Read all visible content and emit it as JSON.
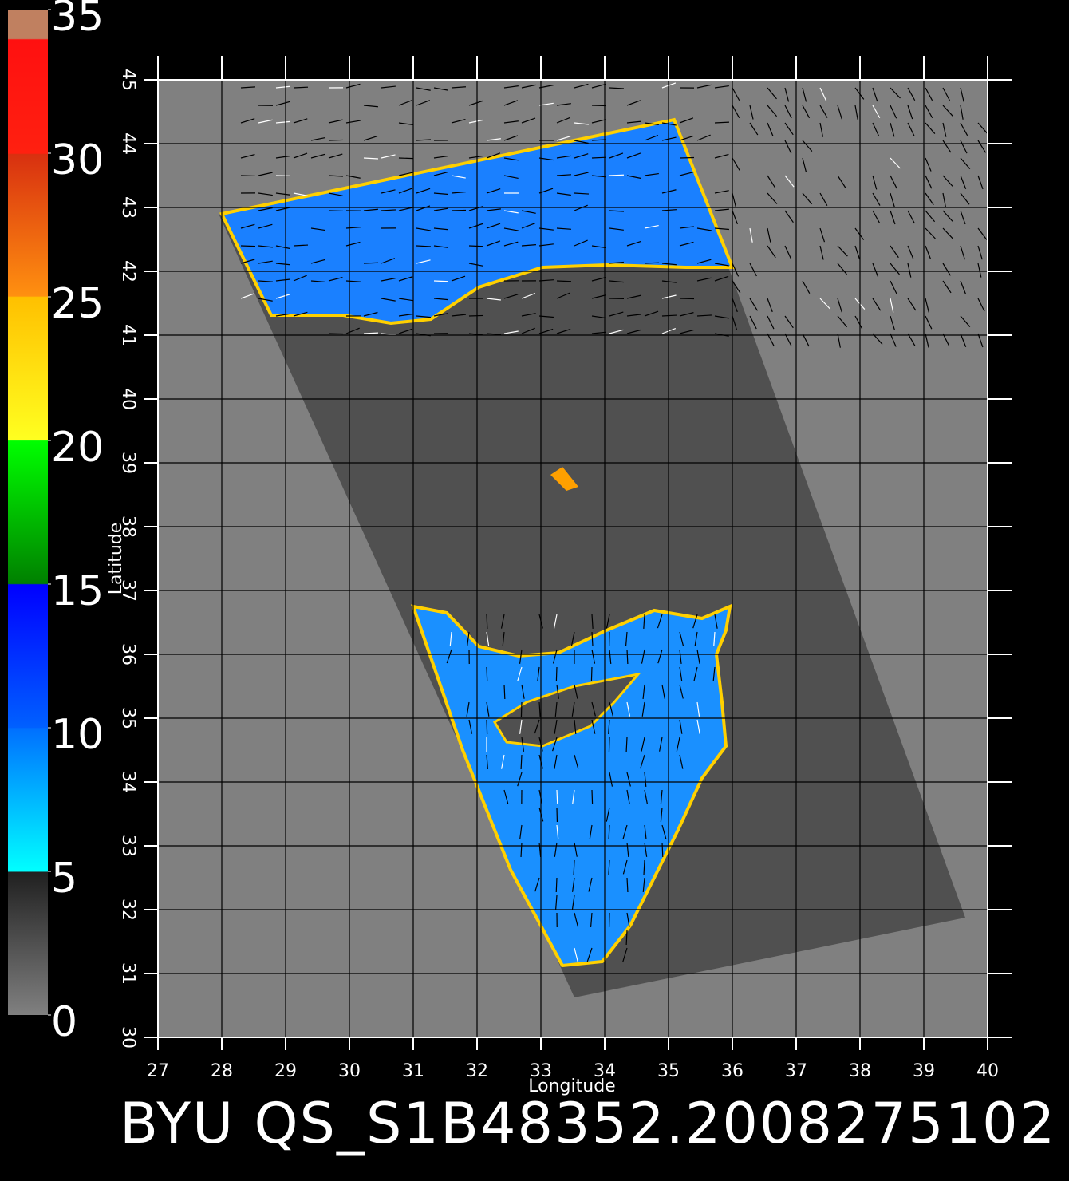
{
  "title": "BYU QS_S1B48352.2008275102",
  "x_axis": {
    "label": "Longitude",
    "lim": [
      27,
      40
    ],
    "ticks": [
      27,
      28,
      29,
      30,
      31,
      32,
      33,
      34,
      35,
      36,
      37,
      38,
      39,
      40
    ]
  },
  "y_axis": {
    "label": "Latitude",
    "lim": [
      30,
      45
    ],
    "ticks": [
      30,
      31,
      32,
      33,
      34,
      35,
      36,
      37,
      38,
      39,
      40,
      41,
      42,
      43,
      44,
      45
    ]
  },
  "colorbar": {
    "lim": [
      0,
      35
    ],
    "ticks": [
      0,
      5,
      10,
      15,
      20,
      25,
      30,
      35
    ]
  }
}
